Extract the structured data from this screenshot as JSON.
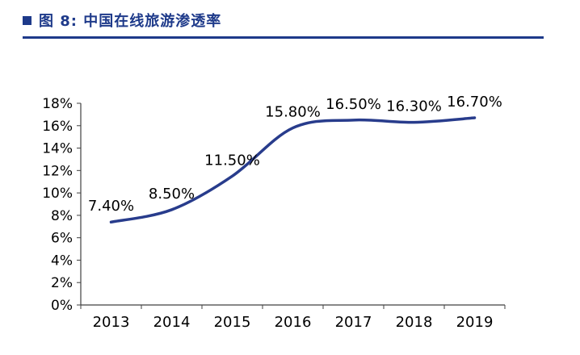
{
  "header": {
    "title": "图 8:  中国在线旅游渗透率",
    "accent_color": "#1e3a8a"
  },
  "chart_data": {
    "type": "line",
    "title": "中国在线旅游渗透率",
    "categories": [
      "2013",
      "2014",
      "2015",
      "2016",
      "2017",
      "2018",
      "2019"
    ],
    "values": [
      7.4,
      8.5,
      11.5,
      15.8,
      16.5,
      16.3,
      16.7
    ],
    "data_labels": [
      "7.40%",
      "8.50%",
      "11.50%",
      "15.80%",
      "16.50%",
      "16.30%",
      "16.70%"
    ],
    "xlabel": "",
    "ylabel": "",
    "ylim": [
      0,
      18
    ],
    "ytick_step": 2,
    "ytick_labels": [
      "0%",
      "2%",
      "4%",
      "6%",
      "8%",
      "10%",
      "12%",
      "14%",
      "16%",
      "18%"
    ],
    "line_color": "#283c8c",
    "axis_color": "#404040",
    "label_color": "#000000",
    "grid": false,
    "legend": "none"
  }
}
